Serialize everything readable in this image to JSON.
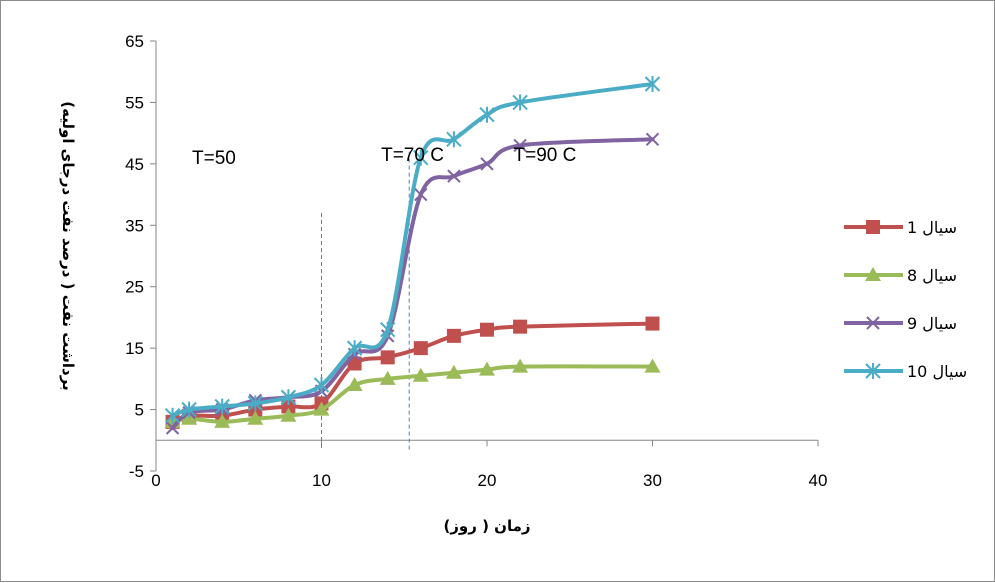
{
  "chart_data": {
    "type": "line",
    "xlabel": "زمان ( روز)",
    "ylabel": "برداشت نفت ( درصد نفت درجای اولیه)",
    "xlim": [
      0,
      40
    ],
    "ylim": [
      -5,
      65
    ],
    "x_ticks": [
      "0",
      "10",
      "20",
      "30",
      "40"
    ],
    "y_ticks": [
      "-5",
      "5",
      "15",
      "25",
      "35",
      "45",
      "55",
      "65"
    ],
    "grid": false,
    "legend_position": "right",
    "annotations": [
      {
        "text": "T=50",
        "x": 3.5,
        "y": 45
      },
      {
        "text": "T=70 C",
        "x": 15.5,
        "y": 45.5
      },
      {
        "text": "T=90 C",
        "x": 23.5,
        "y": 45.5
      }
    ],
    "reference_lines": [
      {
        "x": 10,
        "y_top": 37
      },
      {
        "x": 15.3,
        "y_top": 47
      }
    ],
    "series": [
      {
        "name": "سیال 1",
        "color": "#C0504D",
        "marker": "square",
        "x": [
          1,
          2,
          4,
          6,
          8,
          10,
          12,
          14,
          16,
          18,
          20,
          22,
          30
        ],
        "y": [
          3,
          4,
          4,
          5,
          5.5,
          6,
          12.5,
          13.5,
          15,
          17,
          18,
          18.5,
          19
        ]
      },
      {
        "name": "سیال 8",
        "color": "#9BBB59",
        "marker": "triangle",
        "x": [
          1,
          2,
          4,
          6,
          8,
          10,
          12,
          14,
          16,
          18,
          20,
          22,
          30
        ],
        "y": [
          3,
          3.5,
          3,
          3.5,
          4,
          5,
          9,
          10,
          10.5,
          11,
          11.5,
          12,
          12
        ]
      },
      {
        "name": "سیال 9",
        "color": "#8064A2",
        "marker": "x",
        "x": [
          1,
          2,
          4,
          6,
          8,
          10,
          12,
          14,
          16,
          18,
          20,
          22,
          30
        ],
        "y": [
          2,
          4.5,
          5,
          6.5,
          7,
          8,
          14,
          17,
          40,
          43,
          45,
          48,
          49
        ]
      },
      {
        "name": "سیال 10",
        "color": "#4BACC6",
        "marker": "star",
        "x": [
          1,
          2,
          4,
          6,
          8,
          10,
          12,
          14,
          16,
          18,
          20,
          22,
          30
        ],
        "y": [
          4,
          5,
          5.5,
          6,
          7,
          9,
          15,
          18,
          46,
          49,
          53,
          55,
          58
        ]
      }
    ]
  }
}
